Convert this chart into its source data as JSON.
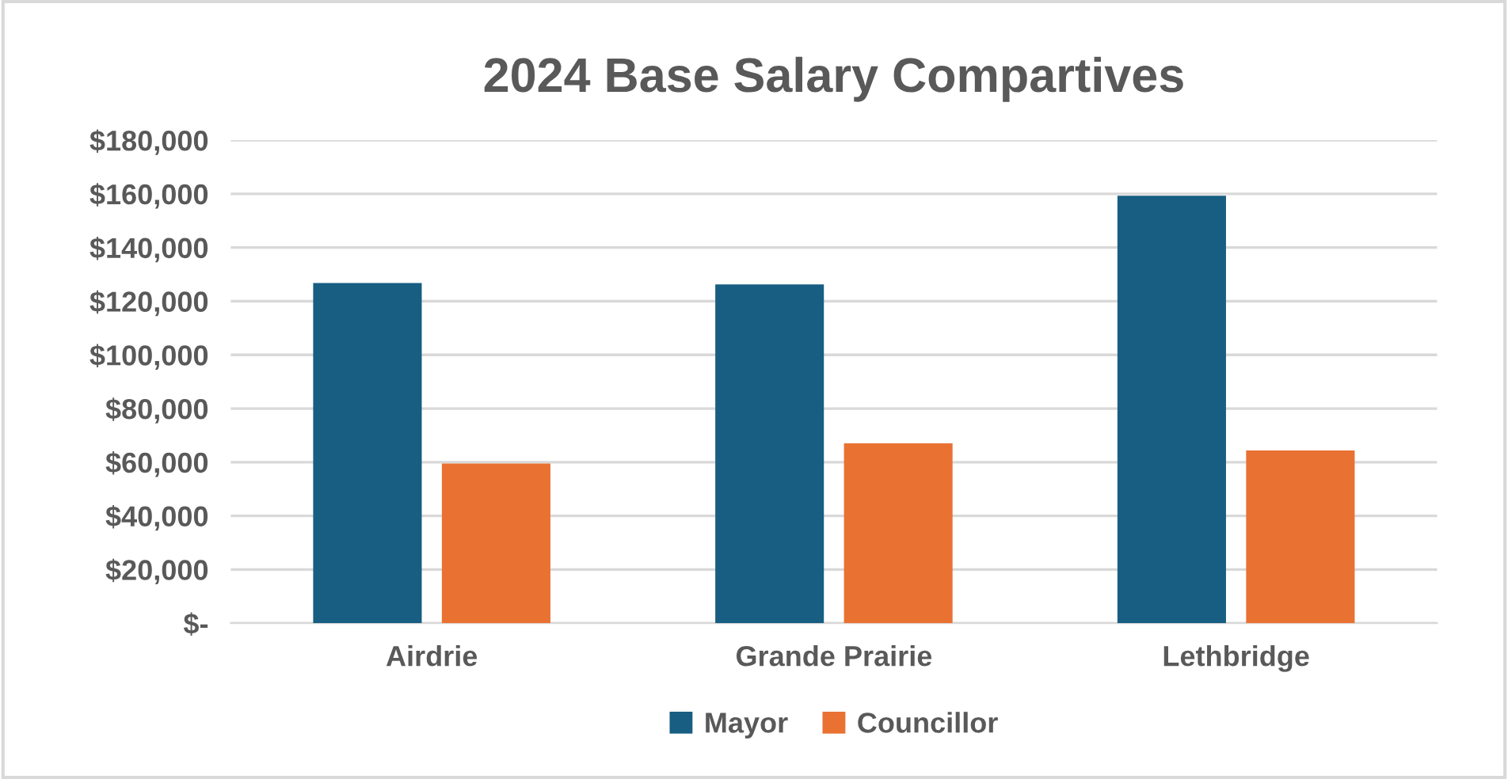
{
  "chart_data": {
    "type": "bar",
    "title": "2024 Base Salary Compartives",
    "categories": [
      "Airdrie",
      "Grande Prairie",
      "Lethbridge"
    ],
    "series": [
      {
        "name": "Mayor",
        "color": "#175e82",
        "values": [
          126800,
          126300,
          159300
        ]
      },
      {
        "name": "Councillor",
        "color": "#e97132",
        "values": [
          59500,
          67000,
          64400
        ]
      }
    ],
    "ylim": [
      0,
      180000
    ],
    "yticks": [
      {
        "value": 0,
        "label": "$-"
      },
      {
        "value": 20000,
        "label": "$20,000"
      },
      {
        "value": 40000,
        "label": "$40,000"
      },
      {
        "value": 60000,
        "label": "$60,000"
      },
      {
        "value": 80000,
        "label": "$80,000"
      },
      {
        "value": 100000,
        "label": "$100,000"
      },
      {
        "value": 120000,
        "label": "$120,000"
      },
      {
        "value": 140000,
        "label": "$140,000"
      },
      {
        "value": 160000,
        "label": "$160,000"
      },
      {
        "value": 180000,
        "label": "$180,000"
      }
    ],
    "grid": "y",
    "legend": "bottom"
  }
}
